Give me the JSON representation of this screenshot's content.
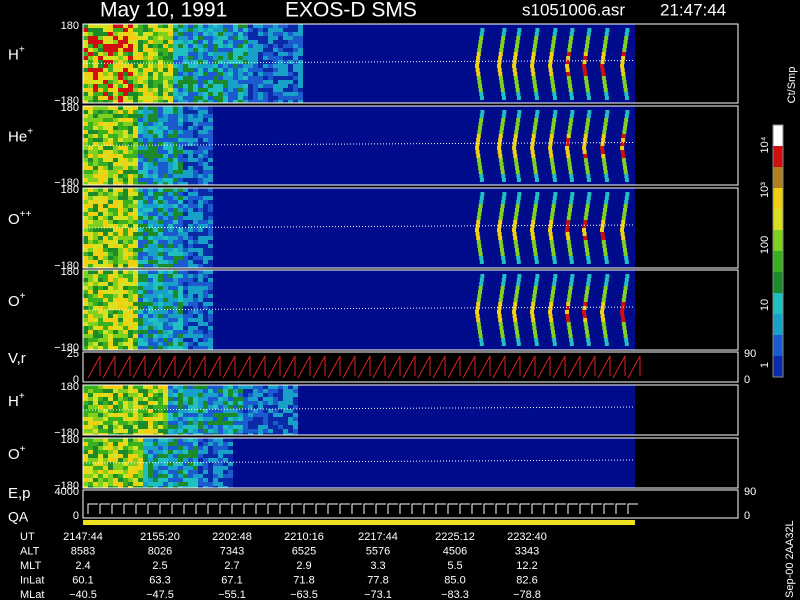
{
  "header": {
    "title": "May 10, 1991",
    "instrument": "EXOS-D SMS",
    "file": "s1051006.asr",
    "time": "21:47:44"
  },
  "panels": [
    {
      "label": "H",
      "sup": "+",
      "top": "180",
      "bottom": "−180"
    },
    {
      "label": "He",
      "sup": "+",
      "top": "180",
      "bottom": "−180"
    },
    {
      "label": "O",
      "sup": "++",
      "top": "180",
      "bottom": "−180"
    },
    {
      "label": "O",
      "sup": "+",
      "top": "180",
      "bottom": "−180"
    },
    {
      "label": "V,r",
      "top": "25",
      "bottom": "0",
      "right_top": "90",
      "right_bottom": "0"
    },
    {
      "label": "H",
      "sup": "+",
      "top": "180",
      "bottom": "−180"
    },
    {
      "label": "O",
      "sup": "+",
      "top": "180",
      "bottom": "−180"
    },
    {
      "label": "E,p",
      "label2": "QA",
      "top": "4000",
      "bottom": "0",
      "right_top": "90",
      "right_bottom": "0"
    }
  ],
  "colorbar": {
    "unit": "Ct/Smp",
    "labels": [
      "10⁴",
      "10³",
      "100",
      "10",
      "1"
    ]
  },
  "footer": "Sep-00 2AA32L",
  "table": {
    "rows": [
      {
        "label": "UT",
        "cells": [
          "2147:44",
          "2155:20",
          "2202:48",
          "2210:16",
          "2217:44",
          "2225:12",
          "2232:40"
        ]
      },
      {
        "label": "ALT",
        "cells": [
          "8583",
          "8026",
          "7343",
          "6525",
          "5576",
          "4506",
          "3343"
        ]
      },
      {
        "label": "MLT",
        "cells": [
          "2.4",
          "2.5",
          "2.7",
          "2.9",
          "3.3",
          "5.5",
          "12.2"
        ]
      },
      {
        "label": "InLat",
        "cells": [
          "60.1",
          "63.3",
          "67.1",
          "71.8",
          "77.8",
          "85.0",
          "82.6"
        ]
      },
      {
        "label": "MLat",
        "cells": [
          "−40.5",
          "−47.5",
          "−55.1",
          "−63.5",
          "−73.1",
          "−83.3",
          "−78.8"
        ]
      }
    ]
  }
}
